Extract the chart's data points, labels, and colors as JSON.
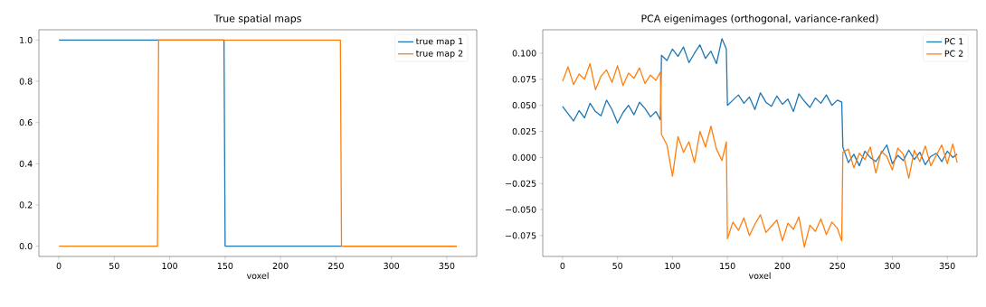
{
  "chart_data": [
    {
      "type": "line",
      "title": "True spatial maps",
      "xlabel": "voxel",
      "xlim": [
        -18,
        377
      ],
      "ylim": [
        -0.05,
        1.05
      ],
      "xticks": [
        0,
        50,
        100,
        150,
        200,
        250,
        300,
        350
      ],
      "yticks": [
        {
          "value": 0,
          "label": "0.0"
        },
        0.2,
        0.4,
        0.6,
        0.8,
        {
          "value": 1,
          "label": "1.0"
        }
      ],
      "legend": "top right",
      "series": [
        {
          "name": "true map 1",
          "color": "#1f77b4",
          "x": [
            0,
            149,
            150,
            359
          ],
          "values": [
            1,
            1,
            0,
            0
          ]
        },
        {
          "name": "true map 2",
          "color": "#ff7f0e",
          "x": [
            0,
            89,
            90,
            254,
            255,
            359
          ],
          "values": [
            0,
            0,
            1,
            1,
            0,
            0
          ]
        }
      ]
    },
    {
      "type": "line",
      "title": "PCA eigenimages (orthogonal, variance-ranked)",
      "xlabel": "voxel",
      "xlim": [
        -18,
        377
      ],
      "ylim": [
        -0.095,
        0.1225
      ],
      "xticks": [
        0,
        50,
        100,
        150,
        200,
        250,
        300,
        350
      ],
      "yticks": [
        {
          "value": -0.075,
          "label": "−0.075"
        },
        {
          "value": -0.05,
          "label": "−0.050"
        },
        {
          "value": -0.025,
          "label": "−0.025"
        },
        {
          "value": 0,
          "label": "0.000"
        },
        0.025,
        {
          "value": 0.05,
          "label": "0.050"
        },
        0.075,
        {
          "value": 0.1,
          "label": "0.100"
        }
      ],
      "legend": "top right",
      "series": [
        {
          "name": "PC 1",
          "color": "#1f77b4",
          "x": [
            0,
            5,
            10,
            15,
            20,
            25,
            30,
            35,
            40,
            45,
            50,
            55,
            60,
            65,
            70,
            75,
            80,
            85,
            89,
            90,
            95,
            100,
            105,
            110,
            115,
            120,
            125,
            130,
            135,
            140,
            145,
            149,
            150,
            155,
            160,
            165,
            170,
            175,
            180,
            185,
            190,
            195,
            200,
            205,
            210,
            215,
            220,
            225,
            230,
            235,
            240,
            245,
            250,
            254,
            255,
            260,
            265,
            270,
            275,
            280,
            285,
            290,
            295,
            300,
            305,
            310,
            315,
            320,
            325,
            330,
            335,
            340,
            345,
            350,
            355,
            359
          ],
          "values": [
            0.049,
            0.042,
            0.035,
            0.045,
            0.038,
            0.052,
            0.044,
            0.04,
            0.055,
            0.046,
            0.033,
            0.043,
            0.05,
            0.041,
            0.053,
            0.047,
            0.039,
            0.044,
            0.036,
            0.098,
            0.093,
            0.104,
            0.097,
            0.106,
            0.091,
            0.1,
            0.108,
            0.095,
            0.102,
            0.09,
            0.114,
            0.104,
            0.05,
            0.055,
            0.06,
            0.052,
            0.058,
            0.046,
            0.062,
            0.053,
            0.049,
            0.059,
            0.051,
            0.056,
            0.044,
            0.061,
            0.054,
            0.048,
            0.057,
            0.052,
            0.06,
            0.05,
            0.055,
            0.053,
            0.01,
            -0.005,
            0.003,
            -0.008,
            0.006,
            0.0,
            -0.004,
            0.004,
            0.012,
            -0.006,
            0.002,
            -0.003,
            0.007,
            -0.002,
            0.005,
            -0.007,
            0.001,
            0.004,
            -0.004,
            0.006,
            0.0,
            0.003
          ]
        },
        {
          "name": "PC 2",
          "color": "#ff7f0e",
          "x": [
            0,
            5,
            10,
            15,
            20,
            25,
            30,
            35,
            40,
            45,
            50,
            55,
            60,
            65,
            70,
            75,
            80,
            85,
            89,
            90,
            95,
            100,
            105,
            110,
            115,
            120,
            125,
            130,
            135,
            140,
            145,
            149,
            150,
            155,
            160,
            165,
            170,
            175,
            180,
            185,
            190,
            195,
            200,
            205,
            210,
            215,
            220,
            225,
            230,
            235,
            240,
            245,
            250,
            254,
            255,
            260,
            265,
            270,
            275,
            280,
            285,
            290,
            295,
            300,
            305,
            310,
            315,
            320,
            325,
            330,
            335,
            340,
            345,
            350,
            355,
            359
          ],
          "values": [
            0.073,
            0.087,
            0.07,
            0.08,
            0.075,
            0.09,
            0.065,
            0.078,
            0.084,
            0.072,
            0.088,
            0.069,
            0.081,
            0.076,
            0.086,
            0.071,
            0.079,
            0.074,
            0.082,
            0.022,
            0.012,
            -0.018,
            0.02,
            0.005,
            0.015,
            -0.005,
            0.025,
            0.01,
            0.03,
            0.008,
            -0.003,
            0.015,
            -0.078,
            -0.062,
            -0.07,
            -0.058,
            -0.075,
            -0.064,
            -0.055,
            -0.072,
            -0.066,
            -0.06,
            -0.08,
            -0.063,
            -0.069,
            -0.057,
            -0.086,
            -0.065,
            -0.071,
            -0.059,
            -0.074,
            -0.062,
            -0.068,
            -0.08,
            0.005,
            0.008,
            -0.01,
            0.004,
            -0.002,
            0.01,
            -0.015,
            0.006,
            0.001,
            -0.012,
            0.009,
            0.003,
            -0.02,
            0.007,
            -0.004,
            0.011,
            -0.008,
            0.002,
            0.012,
            -0.006,
            0.013,
            -0.005
          ]
        }
      ]
    }
  ]
}
